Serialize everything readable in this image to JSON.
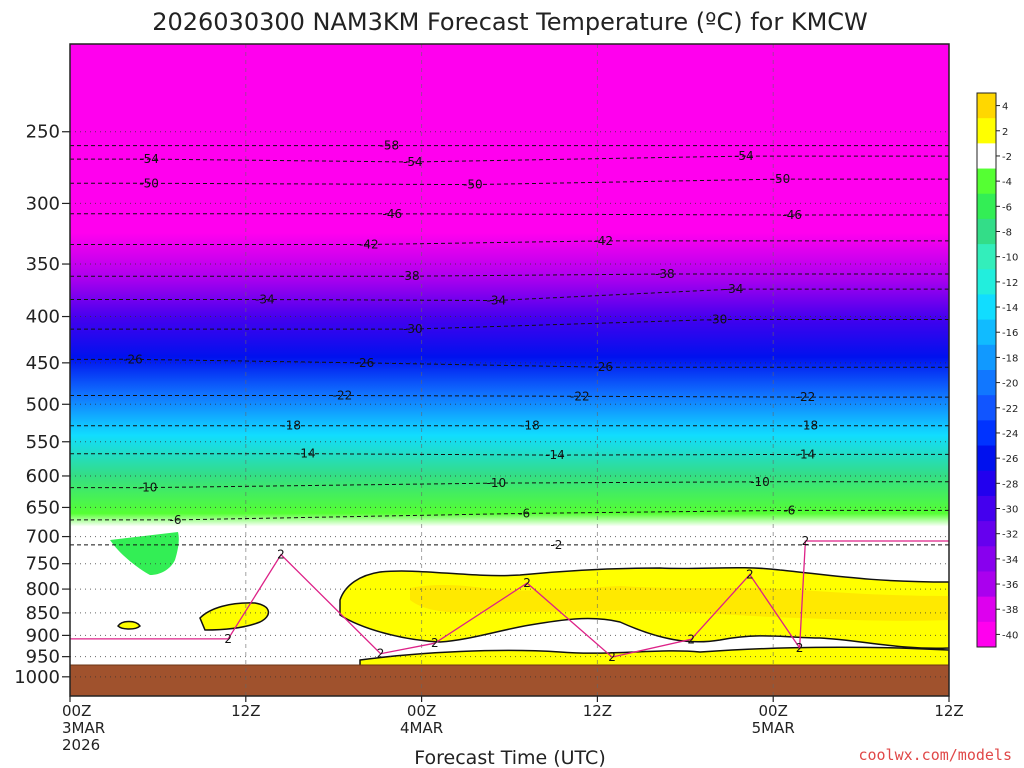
{
  "chart_data": {
    "type": "heatmap",
    "title": "2026030300 NAM3KM Forecast Temperature (ºC) for KMCW",
    "xlabel": "Forecast Time (UTC)",
    "ylabel": "",
    "credit": "coolwx.com/models",
    "x_unit": "forecast hour",
    "xlim": [
      0,
      60
    ],
    "x_ticks": [
      {
        "hour": 0,
        "lines": [
          "00Z",
          "3MAR",
          "2026"
        ]
      },
      {
        "hour": 12,
        "lines": [
          "12Z"
        ]
      },
      {
        "hour": 24,
        "lines": [
          "00Z",
          "4MAR"
        ]
      },
      {
        "hour": 36,
        "lines": [
          "12Z"
        ]
      },
      {
        "hour": 48,
        "lines": [
          "00Z",
          "5MAR"
        ]
      },
      {
        "hour": 60,
        "lines": [
          "12Z"
        ]
      }
    ],
    "y_unit": "pressure (hPa)",
    "y_scale": "log",
    "ylim": [
      1050,
      200
    ],
    "y_ticks": [
      250,
      300,
      350,
      400,
      450,
      500,
      550,
      600,
      650,
      700,
      750,
      800,
      850,
      900,
      950,
      1000
    ],
    "surface_pressure": 970,
    "colorbar": {
      "labels": [
        "4",
        "2",
        "-2",
        "-4",
        "-6",
        "-8",
        "-10",
        "-12",
        "-14",
        "-16",
        "-18",
        "-20",
        "-22",
        "-24",
        "-26",
        "-28",
        "-30",
        "-32",
        "-34",
        "-36",
        "-38",
        "-40"
      ],
      "colors": [
        "#ffd700",
        "#ffff00",
        "#ffffff",
        "#55ff33",
        "#33ee55",
        "#33dd88",
        "#33eebb",
        "#22eedd",
        "#11ddff",
        "#11bbff",
        "#1199ff",
        "#1177ff",
        "#1155ff",
        "#0033ff",
        "#0011ee",
        "#2200ee",
        "#4400ee",
        "#6600ee",
        "#8800ee",
        "#aa00ee",
        "#dd00ee",
        "#ff00ee"
      ]
    },
    "contour_labels": [
      {
        "hour": 21.8,
        "p": 259,
        "text": "-58"
      },
      {
        "hour": 5.4,
        "p": 268,
        "text": "-54"
      },
      {
        "hour": 23.4,
        "p": 270,
        "text": "-54"
      },
      {
        "hour": 46.0,
        "p": 266,
        "text": "-54"
      },
      {
        "hour": 5.4,
        "p": 285,
        "text": "-50"
      },
      {
        "hour": 27.5,
        "p": 286,
        "text": "-50"
      },
      {
        "hour": 48.5,
        "p": 282,
        "text": "-50"
      },
      {
        "hour": 22.0,
        "p": 308,
        "text": "-46"
      },
      {
        "hour": 49.3,
        "p": 309,
        "text": "-46"
      },
      {
        "hour": 20.4,
        "p": 333,
        "text": "-42"
      },
      {
        "hour": 36.4,
        "p": 330,
        "text": "-42"
      },
      {
        "hour": 23.2,
        "p": 361,
        "text": "-38"
      },
      {
        "hour": 40.6,
        "p": 359,
        "text": "-38"
      },
      {
        "hour": 13.3,
        "p": 383,
        "text": "-34"
      },
      {
        "hour": 29.1,
        "p": 384,
        "text": "-34"
      },
      {
        "hour": 45.3,
        "p": 373,
        "text": "-34"
      },
      {
        "hour": 23.4,
        "p": 413,
        "text": "-30"
      },
      {
        "hour": 44.2,
        "p": 403,
        "text": "-30"
      },
      {
        "hour": 4.3,
        "p": 446,
        "text": "-26"
      },
      {
        "hour": 20.1,
        "p": 450,
        "text": "-26"
      },
      {
        "hour": 36.4,
        "p": 455,
        "text": "-26"
      },
      {
        "hour": 18.6,
        "p": 489,
        "text": "-22"
      },
      {
        "hour": 34.8,
        "p": 490,
        "text": "-22"
      },
      {
        "hour": 50.2,
        "p": 491,
        "text": "-22"
      },
      {
        "hour": 15.1,
        "p": 528,
        "text": "-18"
      },
      {
        "hour": 31.4,
        "p": 528,
        "text": "-18"
      },
      {
        "hour": 50.4,
        "p": 528,
        "text": "-18"
      },
      {
        "hour": 16.1,
        "p": 567,
        "text": "-14"
      },
      {
        "hour": 33.1,
        "p": 569,
        "text": "-14"
      },
      {
        "hour": 50.2,
        "p": 568,
        "text": "-14"
      },
      {
        "hour": 5.3,
        "p": 618,
        "text": "-10"
      },
      {
        "hour": 29.1,
        "p": 611,
        "text": "-10"
      },
      {
        "hour": 47.1,
        "p": 609,
        "text": "-10"
      },
      {
        "hour": 7.2,
        "p": 671,
        "text": "-6"
      },
      {
        "hour": 31.0,
        "p": 660,
        "text": "-6"
      },
      {
        "hour": 49.1,
        "p": 655,
        "text": "-6"
      },
      {
        "hour": 33.2,
        "p": 715,
        "text": "-2"
      },
      {
        "hour": 50.2,
        "p": 708,
        "text": "2"
      },
      {
        "hour": 14.4,
        "p": 733,
        "text": "2"
      },
      {
        "hour": 31.2,
        "p": 788,
        "text": "2"
      },
      {
        "hour": 46.4,
        "p": 771,
        "text": "2"
      },
      {
        "hour": 10.8,
        "p": 908,
        "text": "2"
      },
      {
        "hour": 24.9,
        "p": 918,
        "text": "2"
      },
      {
        "hour": 42.4,
        "p": 909,
        "text": "2"
      },
      {
        "hour": 49.8,
        "p": 929,
        "text": "2"
      },
      {
        "hour": 21.2,
        "p": 943,
        "text": "2"
      },
      {
        "hour": 37.0,
        "p": 951,
        "text": "2"
      }
    ]
  }
}
